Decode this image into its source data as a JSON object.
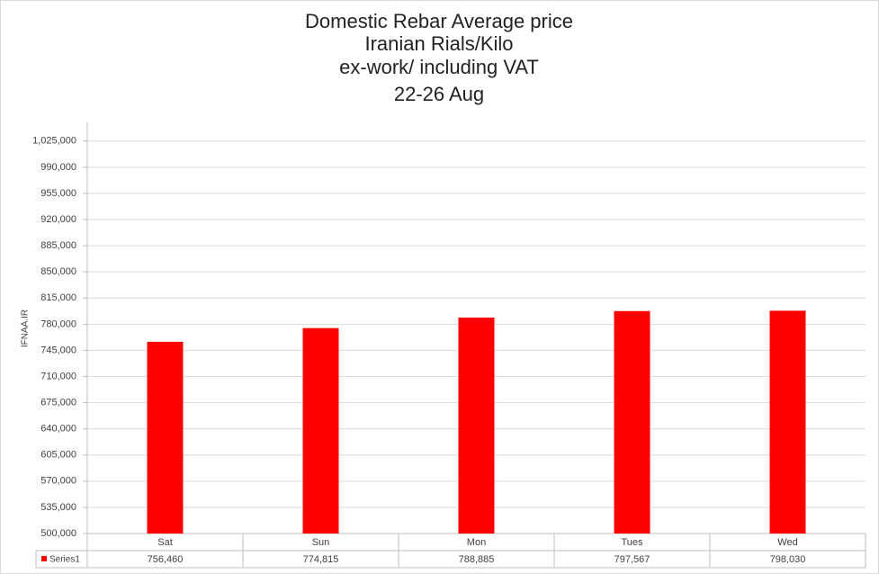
{
  "chart_data": {
    "type": "bar",
    "title": [
      "Domestic Rebar Average price",
      "Iranian Rials/Kilo",
      "ex-work/ including VAT",
      "22-26 Aug"
    ],
    "y_axis_label": "IFNAA.IR",
    "categories": [
      "Sat",
      "Sun",
      "Mon",
      "Tues",
      "Wed"
    ],
    "series": [
      {
        "name": "Series1",
        "color": "#ff0000",
        "values": [
          756460,
          774815,
          788885,
          797567,
          798030
        ],
        "value_labels": [
          "756,460",
          "774,815",
          "788,885",
          "797,567",
          "798,030"
        ]
      }
    ],
    "ylim": [
      500000,
      1050000
    ],
    "yticks": [
      {
        "value": 500000,
        "label": "500,000"
      },
      {
        "value": 535000,
        "label": "535,000"
      },
      {
        "value": 570000,
        "label": "570,000"
      },
      {
        "value": 605000,
        "label": "605,000"
      },
      {
        "value": 640000,
        "label": "640,000"
      },
      {
        "value": 675000,
        "label": "675,000"
      },
      {
        "value": 710000,
        "label": "710,000"
      },
      {
        "value": 745000,
        "label": "745,000"
      },
      {
        "value": 780000,
        "label": "780,000"
      },
      {
        "value": 815000,
        "label": "815,000"
      },
      {
        "value": 850000,
        "label": "850,000"
      },
      {
        "value": 885000,
        "label": "885,000"
      },
      {
        "value": 920000,
        "label": "920,000"
      },
      {
        "value": 955000,
        "label": "955,000"
      },
      {
        "value": 990000,
        "label": "990,000"
      },
      {
        "value": 1025000,
        "label": "1,025,000"
      }
    ],
    "grid": true
  }
}
